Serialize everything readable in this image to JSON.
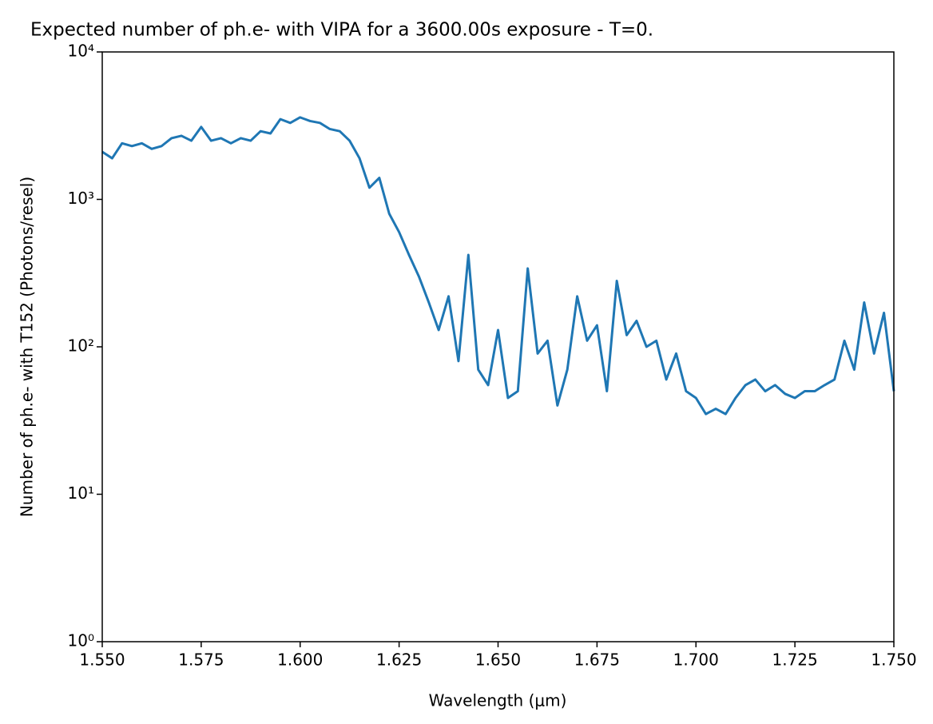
{
  "chart_data": {
    "type": "line",
    "title": "Expected number of ph.e- with VIPA for a 3600.00s exposure - T=0.",
    "x_label": "Wavelength (μm)",
    "y_label": "Number of ph.e- with T152 (Photons/resel)",
    "x": [
      1.55,
      1.5525,
      1.555,
      1.5575,
      1.56,
      1.5625,
      1.565,
      1.5675,
      1.57,
      1.5725,
      1.575,
      1.5775,
      1.58,
      1.5825,
      1.585,
      1.5875,
      1.59,
      1.5925,
      1.595,
      1.5975,
      1.6,
      1.6025,
      1.605,
      1.6075,
      1.61,
      1.6125,
      1.615,
      1.6175,
      1.62,
      1.6225,
      1.625,
      1.6275,
      1.63,
      1.6325,
      1.635,
      1.6375,
      1.64,
      1.6425,
      1.645,
      1.6475,
      1.65,
      1.6525,
      1.655,
      1.6575,
      1.66,
      1.6625,
      1.665,
      1.6675,
      1.67,
      1.6725,
      1.675,
      1.6775,
      1.68,
      1.6825,
      1.685,
      1.6875,
      1.69,
      1.6925,
      1.695,
      1.6975,
      1.7,
      1.7025,
      1.705,
      1.7075,
      1.71,
      1.7125,
      1.715,
      1.7175,
      1.72,
      1.7225,
      1.725,
      1.7275,
      1.73,
      1.7325,
      1.735,
      1.7375,
      1.74,
      1.7425,
      1.745,
      1.7475,
      1.75
    ],
    "series": [
      {
        "name": "T152",
        "color": "#1f77b4",
        "values": [
          2100,
          1900,
          2400,
          2300,
          2400,
          2200,
          2300,
          2600,
          2700,
          2500,
          3100,
          2500,
          2600,
          2400,
          2600,
          2500,
          2900,
          2800,
          3500,
          3300,
          3600,
          3400,
          3300,
          3000,
          2900,
          2500,
          1900,
          1200,
          1400,
          800,
          600,
          420,
          300,
          200,
          130,
          220,
          80,
          420,
          70,
          55,
          130,
          45,
          50,
          340,
          90,
          110,
          40,
          70,
          220,
          110,
          140,
          50,
          280,
          120,
          150,
          100,
          110,
          60,
          90,
          50,
          45,
          35,
          38,
          35,
          45,
          55,
          60,
          50,
          55,
          48,
          45,
          50,
          50,
          55,
          60,
          110,
          70,
          200,
          90,
          170,
          50
        ]
      }
    ],
    "xlim": [
      1.55,
      1.75
    ],
    "xticks": [
      {
        "value": 1.55,
        "label": "1.550"
      },
      1.575,
      {
        "value": 1.6,
        "label": "1.600"
      },
      1.625,
      {
        "value": 1.65,
        "label": "1.650"
      },
      1.675,
      {
        "value": 1.7,
        "label": "1.700"
      },
      1.725,
      {
        "value": 1.75,
        "label": "1.750"
      }
    ],
    "ylim": [
      1,
      10000
    ],
    "yticks": [
      {
        "value": 1,
        "label": "10⁰"
      },
      {
        "value": 10,
        "label": "10¹"
      },
      {
        "value": 100,
        "label": "10²"
      },
      {
        "value": 1000,
        "label": "10³"
      },
      {
        "value": 10000,
        "label": "10⁴"
      }
    ],
    "y_scale": "log",
    "grid": false
  }
}
